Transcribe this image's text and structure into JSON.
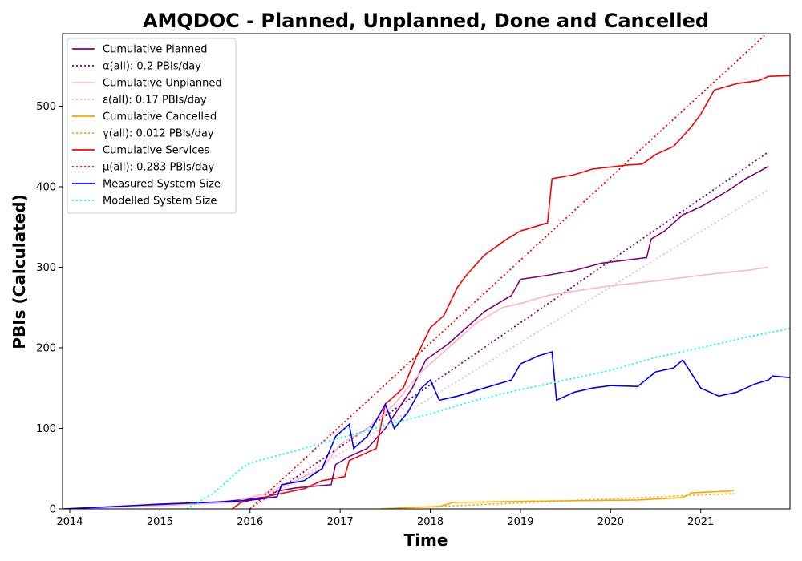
{
  "chart_data": {
    "type": "line",
    "title": "AMQDOC - Planned, Unplanned, Done  and Cancelled",
    "xlabel": "Time",
    "ylabel": "PBIs (Calculated)",
    "xlim": [
      2013.92,
      2021.99
    ],
    "ylim": [
      0,
      590
    ],
    "x_ticks": [
      2014,
      2015,
      2016,
      2017,
      2018,
      2019,
      2020,
      2021
    ],
    "x_tick_labels": [
      "2014",
      "2015",
      "2016",
      "2017",
      "2018",
      "2019",
      "2020",
      "2021"
    ],
    "y_ticks": [
      0,
      100,
      200,
      300,
      400,
      500
    ],
    "y_tick_labels": [
      "0",
      "100",
      "200",
      "300",
      "400",
      "500"
    ],
    "grid": false,
    "legend_position": "top-left",
    "series": [
      {
        "name": "Cumulative Planned",
        "color": "#800080",
        "style": "solid",
        "points": [
          [
            2014.0,
            0
          ],
          [
            2014.5,
            3
          ],
          [
            2015.0,
            5
          ],
          [
            2015.5,
            7
          ],
          [
            2015.8,
            10
          ],
          [
            2016.2,
            15
          ],
          [
            2016.3,
            22
          ],
          [
            2016.5,
            26
          ],
          [
            2016.9,
            30
          ],
          [
            2016.95,
            55
          ],
          [
            2017.1,
            65
          ],
          [
            2017.3,
            75
          ],
          [
            2017.5,
            100
          ],
          [
            2017.8,
            150
          ],
          [
            2017.95,
            185
          ],
          [
            2018.2,
            205
          ],
          [
            2018.4,
            225
          ],
          [
            2018.6,
            245
          ],
          [
            2018.9,
            265
          ],
          [
            2019.0,
            285
          ],
          [
            2019.3,
            290
          ],
          [
            2019.6,
            296
          ],
          [
            2019.9,
            305
          ],
          [
            2020.4,
            312
          ],
          [
            2020.45,
            335
          ],
          [
            2020.6,
            345
          ],
          [
            2020.8,
            365
          ],
          [
            2021.0,
            375
          ],
          [
            2021.3,
            395
          ],
          [
            2021.5,
            410
          ],
          [
            2021.75,
            425
          ]
        ]
      },
      {
        "name": "α(all): 0.2 PBIs/day",
        "color": "#800080",
        "style": "dotted",
        "points": [
          [
            2016.0,
            0
          ],
          [
            2021.75,
            443
          ]
        ]
      },
      {
        "name": "Cumulative Unplanned",
        "color": "#FFB6C1",
        "style": "solid",
        "points": [
          [
            2014.0,
            0
          ],
          [
            2015.0,
            4
          ],
          [
            2015.8,
            8
          ],
          [
            2016.2,
            20
          ],
          [
            2016.5,
            35
          ],
          [
            2016.8,
            50
          ],
          [
            2017.0,
            80
          ],
          [
            2017.3,
            100
          ],
          [
            2017.6,
            130
          ],
          [
            2017.9,
            170
          ],
          [
            2018.2,
            200
          ],
          [
            2018.5,
            230
          ],
          [
            2018.8,
            250
          ],
          [
            2019.0,
            255
          ],
          [
            2019.3,
            265
          ],
          [
            2019.7,
            272
          ],
          [
            2020.0,
            277
          ],
          [
            2020.5,
            283
          ],
          [
            2021.0,
            290
          ],
          [
            2021.5,
            296
          ],
          [
            2021.75,
            300
          ]
        ]
      },
      {
        "name": "ε(all): 0.17 PBIs/day",
        "color": "#FFB6C1",
        "style": "dotted",
        "points": [
          [
            2016.0,
            0
          ],
          [
            2021.75,
            396
          ]
        ]
      },
      {
        "name": "Cumulative Cancelled",
        "color": "#FFA500",
        "style": "solid",
        "points": [
          [
            2017.45,
            0
          ],
          [
            2017.8,
            2
          ],
          [
            2018.1,
            3
          ],
          [
            2018.25,
            8
          ],
          [
            2018.8,
            9
          ],
          [
            2019.5,
            10
          ],
          [
            2020.3,
            11
          ],
          [
            2020.8,
            14
          ],
          [
            2020.9,
            20
          ],
          [
            2021.3,
            22
          ],
          [
            2021.37,
            23
          ]
        ]
      },
      {
        "name": "γ(all): 0.012 PBIs/day",
        "color": "#FFA500",
        "style": "dotted",
        "points": [
          [
            2017.45,
            0
          ],
          [
            2021.37,
            19
          ]
        ]
      },
      {
        "name": "Cumulative Services",
        "color": "#FF0000",
        "style": "solid",
        "points": [
          [
            2015.8,
            0
          ],
          [
            2015.9,
            8
          ],
          [
            2016.3,
            18
          ],
          [
            2016.6,
            25
          ],
          [
            2016.8,
            35
          ],
          [
            2017.05,
            40
          ],
          [
            2017.1,
            60
          ],
          [
            2017.4,
            75
          ],
          [
            2017.5,
            130
          ],
          [
            2017.7,
            150
          ],
          [
            2017.85,
            190
          ],
          [
            2018.0,
            225
          ],
          [
            2018.15,
            240
          ],
          [
            2018.3,
            275
          ],
          [
            2018.4,
            290
          ],
          [
            2018.6,
            315
          ],
          [
            2018.85,
            335
          ],
          [
            2019.0,
            345
          ],
          [
            2019.3,
            355
          ],
          [
            2019.35,
            410
          ],
          [
            2019.6,
            415
          ],
          [
            2019.8,
            422
          ],
          [
            2020.2,
            427
          ],
          [
            2020.35,
            428
          ],
          [
            2020.5,
            440
          ],
          [
            2020.7,
            450
          ],
          [
            2020.9,
            475
          ],
          [
            2021.0,
            490
          ],
          [
            2021.15,
            520
          ],
          [
            2021.4,
            528
          ],
          [
            2021.65,
            532
          ],
          [
            2021.75,
            537
          ],
          [
            2021.99,
            538
          ]
        ]
      },
      {
        "name": "μ(all): 0.283 PBIs/day",
        "color": "#FF0000",
        "style": "dotted",
        "points": [
          [
            2016.0,
            0
          ],
          [
            2021.75,
            592
          ]
        ]
      },
      {
        "name": "Measured System Size",
        "color": "#0000FF",
        "style": "solid",
        "points": [
          [
            2013.92,
            0
          ],
          [
            2014.5,
            3
          ],
          [
            2015.0,
            6
          ],
          [
            2015.5,
            8
          ],
          [
            2015.9,
            10
          ],
          [
            2016.1,
            12
          ],
          [
            2016.3,
            15
          ],
          [
            2016.35,
            30
          ],
          [
            2016.6,
            35
          ],
          [
            2016.8,
            50
          ],
          [
            2016.95,
            90
          ],
          [
            2017.1,
            105
          ],
          [
            2017.15,
            75
          ],
          [
            2017.3,
            90
          ],
          [
            2017.4,
            110
          ],
          [
            2017.5,
            130
          ],
          [
            2017.6,
            100
          ],
          [
            2017.75,
            120
          ],
          [
            2017.9,
            150
          ],
          [
            2018.0,
            160
          ],
          [
            2018.1,
            135
          ],
          [
            2018.3,
            140
          ],
          [
            2018.6,
            150
          ],
          [
            2018.9,
            160
          ],
          [
            2019.0,
            180
          ],
          [
            2019.2,
            190
          ],
          [
            2019.35,
            195
          ],
          [
            2019.4,
            135
          ],
          [
            2019.6,
            145
          ],
          [
            2019.8,
            150
          ],
          [
            2020.0,
            153
          ],
          [
            2020.3,
            152
          ],
          [
            2020.5,
            170
          ],
          [
            2020.7,
            175
          ],
          [
            2020.8,
            185
          ],
          [
            2021.0,
            150
          ],
          [
            2021.2,
            140
          ],
          [
            2021.4,
            145
          ],
          [
            2021.6,
            155
          ],
          [
            2021.75,
            160
          ],
          [
            2021.8,
            165
          ],
          [
            2021.99,
            163
          ]
        ]
      },
      {
        "name": "Modelled System Size",
        "color": "#00FFFF",
        "style": "dotted",
        "points": [
          [
            2015.3,
            0
          ],
          [
            2015.6,
            20
          ],
          [
            2015.9,
            50
          ],
          [
            2016.0,
            57
          ],
          [
            2016.5,
            72
          ],
          [
            2017.0,
            88
          ],
          [
            2017.5,
            104
          ],
          [
            2018.0,
            118
          ],
          [
            2018.5,
            135
          ],
          [
            2019.0,
            148
          ],
          [
            2019.5,
            160
          ],
          [
            2020.0,
            172
          ],
          [
            2020.5,
            188
          ],
          [
            2021.0,
            200
          ],
          [
            2021.5,
            213
          ],
          [
            2021.99,
            224
          ]
        ]
      }
    ]
  }
}
